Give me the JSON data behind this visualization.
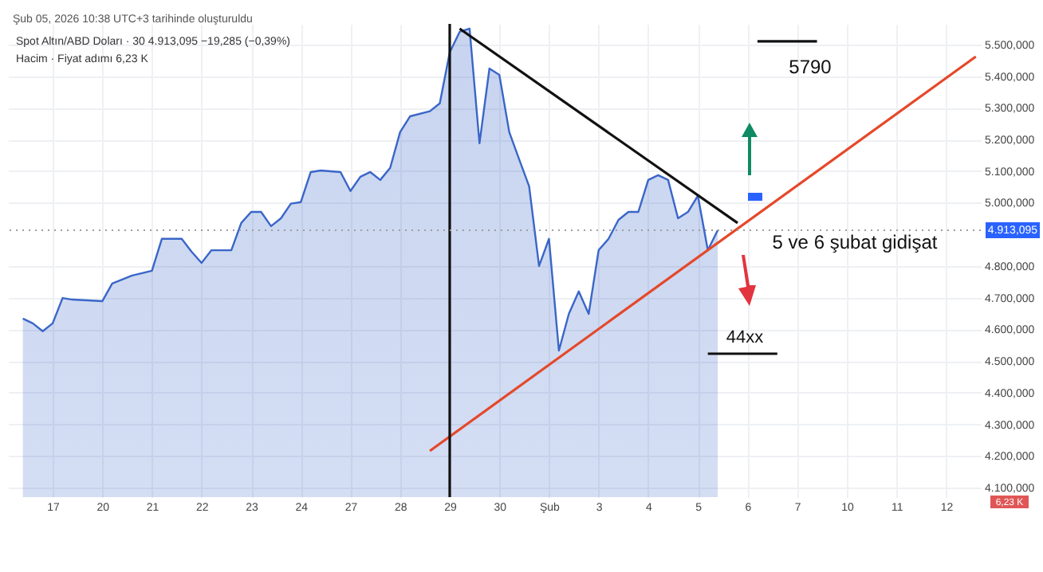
{
  "chart_data": {
    "type": "area",
    "title": "Şub 05, 2026 10:38 UTC+3 tarihinde oluşturuldu",
    "subtitle": "Spot Altın/ABD Doları · 30 4.913,095 −19,285 (−0,39%)",
    "categories": [
      null,
      null,
      null,
      null,
      "17",
      null,
      null,
      null,
      null,
      "20",
      null,
      null,
      null,
      null,
      "21",
      null,
      null,
      null,
      null,
      "22",
      null,
      null,
      null,
      null,
      "23",
      null,
      null,
      null,
      null,
      "24",
      null,
      null,
      null,
      null,
      "27",
      null,
      null,
      null,
      null,
      "28",
      null,
      null,
      null,
      null,
      "29",
      null,
      null,
      null,
      null,
      "30",
      null,
      null,
      null,
      null,
      "Şub",
      null,
      null,
      null,
      null,
      "3",
      null,
      null,
      null,
      null,
      "4",
      null,
      null,
      null,
      null,
      "5",
      null,
      null,
      null,
      null,
      "6",
      null,
      null,
      null,
      null,
      "7",
      null,
      null,
      null,
      null,
      "10",
      null,
      null,
      null,
      null,
      "11",
      null,
      null,
      null,
      null,
      "12",
      null,
      null,
      null
    ],
    "ylim": [
      4070,
      5565
    ],
    "yticks": [
      {
        "value": 4100,
        "label": "4.100,000"
      },
      {
        "value": 4200,
        "label": "4.200,000"
      },
      {
        "value": 4300,
        "label": "4.300,000"
      },
      {
        "value": 4400,
        "label": "4.400,000"
      },
      {
        "value": 4500,
        "label": "4.500,000"
      },
      {
        "value": 4600,
        "label": "4.600,000"
      },
      {
        "value": 4700,
        "label": "4.700,000"
      },
      {
        "value": 4800,
        "label": "4.800,000"
      },
      {
        "value": 5000,
        "label": "5.000,000"
      },
      {
        "value": 5100,
        "label": "5.100,000"
      },
      {
        "value": 5200,
        "label": "5.200,000"
      },
      {
        "value": 5300,
        "label": "5.300,000"
      },
      {
        "value": 5400,
        "label": "5.400,000"
      },
      {
        "value": 5500,
        "label": "5.500,000"
      }
    ],
    "grid": true,
    "series": [
      {
        "color": "#3a66c8",
        "values": [
          null,
          4634,
          4619,
          4594,
          4619,
          4699,
          4694,
          null,
          null,
          4689,
          4745,
          null,
          4770,
          null,
          4785,
          4886,
          null,
          4886,
          4845,
          4810,
          4850,
          null,
          4850,
          4936,
          4971,
          4971,
          4926,
          4951,
          4997,
          5002,
          5097,
          5102,
          null,
          5097,
          5037,
          5082,
          5097,
          5072,
          5110,
          5223,
          5273,
          null,
          5289,
          5314,
          5475,
          5540,
          5550,
          5188,
          5424,
          5404,
          5223,
          5137,
          5052,
          4800,
          4886,
          4533,
          4649,
          4720,
          4649,
          4850,
          4886,
          4946,
          4971,
          4971,
          5072,
          5087,
          5072,
          4951,
          4971,
          5022,
          4850,
          4913,
          null,
          null,
          null,
          null,
          null,
          null,
          null,
          null,
          null,
          null,
          null,
          null,
          null,
          null,
          null,
          null,
          null,
          null,
          null,
          null,
          null,
          null,
          null,
          null,
          null,
          null
        ]
      },
      {
        "type": "line",
        "color": "#111111",
        "values": [
          null,
          null,
          null,
          null,
          null,
          null,
          null,
          null,
          null,
          null,
          null,
          null,
          null,
          null,
          null,
          null,
          null,
          null,
          null,
          null,
          null,
          null,
          null,
          null,
          null,
          null,
          null,
          null,
          null,
          null,
          null,
          null,
          null,
          null,
          null,
          null,
          null,
          null,
          null,
          null,
          null,
          null,
          null,
          null,
          null,
          5550,
          null,
          null,
          null,
          null,
          null,
          null,
          null,
          null,
          null,
          null,
          null,
          null,
          null,
          null,
          null,
          null,
          null,
          null,
          null,
          null,
          null,
          null,
          null,
          null,
          null,
          null,
          null,
          4936,
          null,
          null,
          null,
          null,
          null,
          null,
          null,
          null,
          null,
          null,
          null,
          null,
          null,
          null,
          null,
          null,
          null,
          null,
          null,
          null,
          null,
          null,
          null,
          null
        ]
      },
      {
        "type": "line",
        "color": "#e5482a",
        "values": [
          null,
          null,
          null,
          null,
          null,
          null,
          null,
          null,
          null,
          null,
          null,
          null,
          null,
          null,
          null,
          null,
          null,
          null,
          null,
          null,
          null,
          null,
          null,
          null,
          null,
          null,
          null,
          null,
          null,
          null,
          null,
          null,
          null,
          null,
          null,
          null,
          null,
          null,
          null,
          null,
          null,
          null,
          4216,
          null,
          null,
          null,
          null,
          null,
          null,
          null,
          null,
          null,
          null,
          null,
          null,
          null,
          null,
          null,
          null,
          null,
          null,
          null,
          null,
          null,
          null,
          null,
          null,
          null,
          null,
          null,
          null,
          null,
          null,
          null,
          null,
          null,
          null,
          null,
          null,
          null,
          null,
          null,
          null,
          null,
          null,
          null,
          null,
          null,
          null,
          null,
          null,
          null,
          null,
          null,
          null,
          null,
          null,
          5462
        ]
      },
      {
        "type": "line",
        "color": "#111111",
        "values": [
          null,
          null,
          null,
          null,
          null,
          null,
          null,
          null,
          null,
          null,
          null,
          null,
          null,
          null,
          null,
          null,
          null,
          null,
          null,
          null,
          null,
          null,
          null,
          null,
          null,
          null,
          null,
          null,
          null,
          null,
          null,
          null,
          null,
          null,
          null,
          null,
          null,
          null,
          null,
          null,
          null,
          null,
          null,
          null,
          null,
          null,
          null,
          null,
          null,
          null,
          null,
          null,
          null,
          null,
          null,
          null,
          null,
          null,
          null,
          null,
          null,
          null,
          null,
          null,
          null,
          null,
          null,
          null,
          null,
          null,
          null,
          null,
          null,
          null,
          null,
          5510,
          null,
          null,
          null,
          null,
          null,
          5510,
          null,
          null,
          null,
          null,
          null,
          null,
          null,
          null,
          null,
          null,
          null,
          null,
          null,
          null,
          null,
          null
        ]
      },
      {
        "type": "line",
        "color": "#111111",
        "values": [
          null,
          null,
          null,
          null,
          null,
          null,
          null,
          null,
          null,
          null,
          null,
          null,
          null,
          null,
          null,
          null,
          null,
          null,
          null,
          null,
          null,
          null,
          null,
          null,
          null,
          null,
          null,
          null,
          null,
          null,
          null,
          null,
          null,
          null,
          null,
          null,
          null,
          null,
          null,
          null,
          null,
          null,
          null,
          null,
          null,
          null,
          null,
          null,
          null,
          null,
          null,
          null,
          null,
          null,
          null,
          null,
          null,
          null,
          null,
          null,
          null,
          null,
          null,
          null,
          null,
          null,
          null,
          null,
          null,
          null,
          4523,
          null,
          null,
          null,
          null,
          null,
          null,
          4523,
          null,
          null,
          null,
          null,
          null,
          null,
          null,
          null,
          null,
          null,
          null,
          null,
          null,
          null,
          null,
          null,
          null,
          null,
          null,
          null
        ]
      }
    ],
    "ref_lines": [
      {
        "axis": "x",
        "value": "29",
        "color": "#111111"
      },
      {
        "axis": "y",
        "value": 4913.095,
        "label": "4.913,095",
        "color": "#9e9e9e",
        "line_style": "dotted"
      }
    ],
    "annotations": [
      "Hacim · Fiyat adımı 6,23 K",
      "6,23 K",
      "5790",
      "44xx",
      "5 ve 6 şubat gidişat"
    ],
    "marker": "none"
  }
}
